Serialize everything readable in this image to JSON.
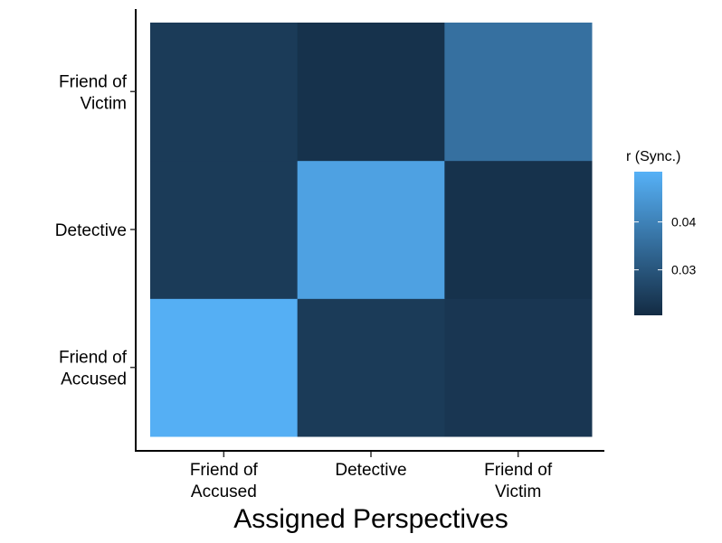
{
  "chart_data": {
    "type": "heatmap",
    "xlabel": "Assigned Perspectives",
    "ylabel": "",
    "x_categories": [
      "Friend of\nAccused",
      "Detective",
      "Friend of\nVictim"
    ],
    "y_categories": [
      "Friend of\nAccused",
      "Detective",
      "Friend of\nVictim"
    ],
    "values": [
      [
        0.05,
        0.024,
        0.023
      ],
      [
        0.024,
        0.047,
        0.022
      ],
      [
        0.024,
        0.022,
        0.036
      ]
    ],
    "legend": {
      "title": "r (Sync.)",
      "position": "right",
      "ticks": [
        0.03,
        0.04
      ],
      "tick_labels": [
        "0.03",
        "0.04"
      ],
      "range": [
        0.0205,
        0.0505
      ],
      "low_color": "#132B43",
      "high_color": "#56B1F7"
    },
    "grid": false
  }
}
